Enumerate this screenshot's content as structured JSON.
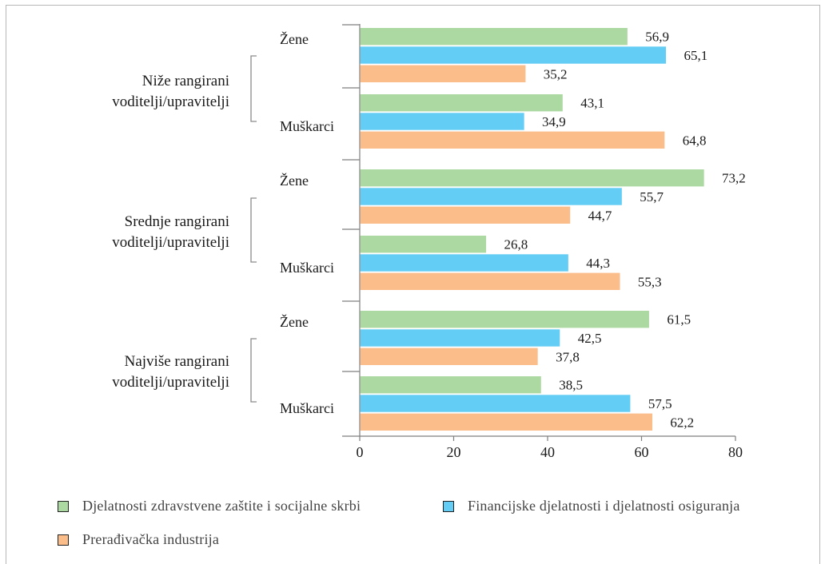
{
  "chart_data": {
    "type": "bar",
    "orientation": "horizontal",
    "xlim": [
      0,
      80
    ],
    "xticks": [
      0,
      20,
      40,
      60,
      80
    ],
    "groups": [
      {
        "label_lines": [
          "Niže rangirani",
          "voditelji/upravitelji"
        ],
        "subgroups": [
          {
            "label": "Žene",
            "values": [
              56.9,
              65.1,
              35.2
            ],
            "value_labels": [
              "56,9",
              "65,1",
              "35,2"
            ]
          },
          {
            "label": "Muškarci",
            "values": [
              43.1,
              34.9,
              64.8
            ],
            "value_labels": [
              "43,1",
              "34,9",
              "64,8"
            ]
          }
        ]
      },
      {
        "label_lines": [
          "Srednje rangirani",
          "voditelji/upravitelji"
        ],
        "subgroups": [
          {
            "label": "Žene",
            "values": [
              73.2,
              55.7,
              44.7
            ],
            "value_labels": [
              "73,2",
              "55,7",
              "44,7"
            ]
          },
          {
            "label": "Muškarci",
            "values": [
              26.8,
              44.3,
              55.3
            ],
            "value_labels": [
              "26,8",
              "44,3",
              "55,3"
            ]
          }
        ]
      },
      {
        "label_lines": [
          "Najviše rangirani",
          "voditelji/upravitelji"
        ],
        "subgroups": [
          {
            "label": "Žene",
            "values": [
              61.5,
              42.5,
              37.8
            ],
            "value_labels": [
              "61,5",
              "42,5",
              "37,8"
            ]
          },
          {
            "label": "Muškarci",
            "values": [
              38.5,
              57.5,
              62.2
            ],
            "value_labels": [
              "38,5",
              "57,5",
              "62,2"
            ]
          }
        ]
      }
    ],
    "series": [
      {
        "name": "Djelatnosti zdravstvene zaštite i socijalne skrbi",
        "color": "#acd8a2"
      },
      {
        "name": "Financijske djelatnosti i djelatnosti osiguranja",
        "color": "#64cdf6"
      },
      {
        "name": "Prerađivačka industrija",
        "color": "#fbbd8a"
      }
    ],
    "grid": false,
    "legend_position": "bottom"
  }
}
